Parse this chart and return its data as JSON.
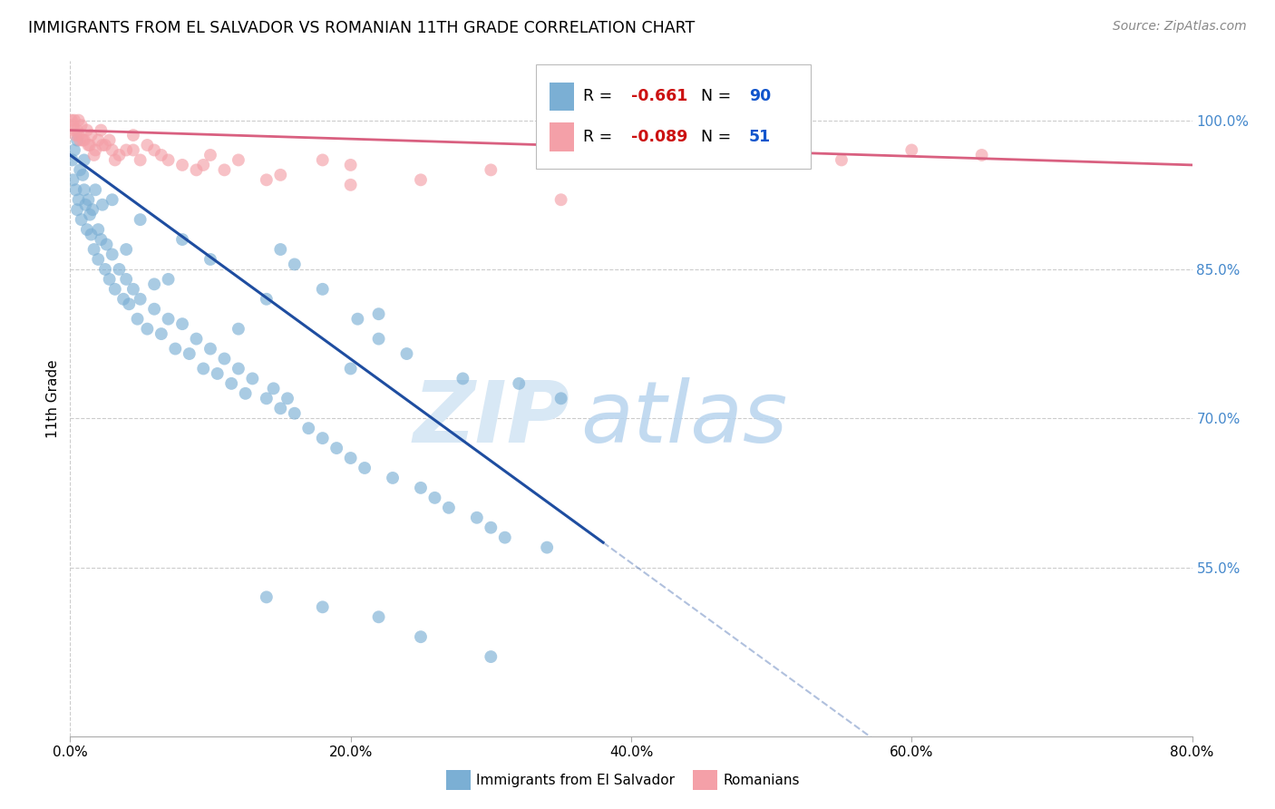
{
  "title": "IMMIGRANTS FROM EL SALVADOR VS ROMANIAN 11TH GRADE CORRELATION CHART",
  "source": "Source: ZipAtlas.com",
  "ylabel": "11th Grade",
  "y_ticks": [
    55.0,
    70.0,
    85.0,
    100.0
  ],
  "x_ticks": [
    0.0,
    20.0,
    40.0,
    60.0,
    80.0
  ],
  "x_range": [
    0.0,
    80.0
  ],
  "y_range": [
    38.0,
    106.0
  ],
  "blue_R": -0.661,
  "blue_N": 90,
  "pink_R": -0.089,
  "pink_N": 51,
  "blue_color": "#7BAFD4",
  "pink_color": "#F4A0A8",
  "blue_line_color": "#1E4DA0",
  "pink_line_color": "#D96080",
  "background_color": "#FFFFFF",
  "blue_line_x0": 0.0,
  "blue_line_y0": 96.5,
  "blue_line_x1": 38.0,
  "blue_line_y1": 57.5,
  "pink_line_x0": 0.0,
  "pink_line_y0": 99.0,
  "pink_line_x1": 80.0,
  "pink_line_y1": 95.5,
  "blue_scatter_x": [
    0.15,
    0.2,
    0.3,
    0.4,
    0.5,
    0.5,
    0.6,
    0.7,
    0.8,
    0.9,
    1.0,
    1.0,
    1.1,
    1.2,
    1.3,
    1.4,
    1.5,
    1.6,
    1.7,
    1.8,
    2.0,
    2.0,
    2.2,
    2.3,
    2.5,
    2.6,
    2.8,
    3.0,
    3.2,
    3.5,
    3.8,
    4.0,
    4.2,
    4.5,
    4.8,
    5.0,
    5.5,
    6.0,
    6.5,
    7.0,
    7.5,
    8.0,
    8.5,
    9.0,
    9.5,
    10.0,
    10.5,
    11.0,
    11.5,
    12.0,
    12.5,
    13.0,
    14.0,
    14.5,
    15.0,
    15.5,
    16.0,
    17.0,
    18.0,
    19.0,
    20.0,
    20.5,
    21.0,
    22.0,
    23.0,
    24.0,
    25.0,
    26.0,
    27.0,
    28.0,
    29.0,
    30.0,
    31.0,
    32.0,
    34.0,
    35.0,
    15.0,
    18.0,
    22.0,
    16.0,
    6.0,
    8.0,
    12.0,
    5.0,
    10.0,
    14.0,
    20.0,
    3.0,
    4.0,
    7.0
  ],
  "blue_scatter_y": [
    96.0,
    94.0,
    97.0,
    93.0,
    91.0,
    98.0,
    92.0,
    95.0,
    90.0,
    94.5,
    93.0,
    96.0,
    91.5,
    89.0,
    92.0,
    90.5,
    88.5,
    91.0,
    87.0,
    93.0,
    89.0,
    86.0,
    88.0,
    91.5,
    85.0,
    87.5,
    84.0,
    86.5,
    83.0,
    85.0,
    82.0,
    84.0,
    81.5,
    83.0,
    80.0,
    82.0,
    79.0,
    81.0,
    78.5,
    80.0,
    77.0,
    79.5,
    76.5,
    78.0,
    75.0,
    77.0,
    74.5,
    76.0,
    73.5,
    75.0,
    72.5,
    74.0,
    72.0,
    73.0,
    71.0,
    72.0,
    70.5,
    69.0,
    68.0,
    67.0,
    66.0,
    80.0,
    65.0,
    78.0,
    64.0,
    76.5,
    63.0,
    62.0,
    61.0,
    74.0,
    60.0,
    59.0,
    58.0,
    73.5,
    57.0,
    72.0,
    87.0,
    83.0,
    80.5,
    85.5,
    83.5,
    88.0,
    79.0,
    90.0,
    86.0,
    82.0,
    75.0,
    92.0,
    87.0,
    84.0
  ],
  "blue_low_x": [
    14.0,
    18.0,
    22.0,
    25.0,
    30.0
  ],
  "blue_low_y": [
    52.0,
    51.0,
    50.0,
    48.0,
    46.0
  ],
  "pink_scatter_x": [
    0.1,
    0.2,
    0.3,
    0.4,
    0.5,
    0.6,
    0.7,
    0.8,
    1.0,
    1.2,
    1.4,
    1.5,
    1.8,
    2.0,
    2.2,
    2.5,
    2.8,
    3.0,
    3.5,
    4.0,
    4.5,
    5.0,
    5.5,
    6.0,
    7.0,
    8.0,
    9.0,
    10.0,
    11.0,
    12.0,
    15.0,
    18.0,
    20.0,
    25.0,
    30.0,
    60.0,
    65.0,
    0.3,
    0.6,
    0.9,
    1.3,
    1.7,
    2.3,
    3.2,
    4.5,
    6.5,
    9.5,
    14.0,
    20.0,
    35.0,
    55.0
  ],
  "pink_scatter_y": [
    100.0,
    99.5,
    100.0,
    98.5,
    99.0,
    100.0,
    98.0,
    99.5,
    98.0,
    99.0,
    97.5,
    98.5,
    97.0,
    98.0,
    99.0,
    97.5,
    98.0,
    97.0,
    96.5,
    97.0,
    98.5,
    96.0,
    97.5,
    97.0,
    96.0,
    95.5,
    95.0,
    96.5,
    95.0,
    96.0,
    94.5,
    96.0,
    95.5,
    94.0,
    95.0,
    97.0,
    96.5,
    99.0,
    98.5,
    98.0,
    97.5,
    96.5,
    97.5,
    96.0,
    97.0,
    96.5,
    95.5,
    94.0,
    93.5,
    92.0,
    96.0
  ]
}
